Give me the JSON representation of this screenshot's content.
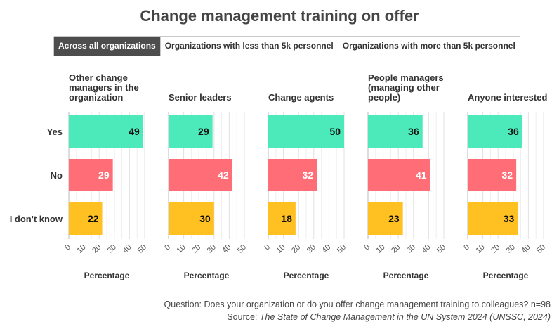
{
  "title": "Change management training on offer",
  "tabs": [
    {
      "label": "Across all organizations",
      "active": true
    },
    {
      "label": "Organizations with less than 5k personnel",
      "active": false
    },
    {
      "label": "Organizations with more than 5k personnel",
      "active": false
    }
  ],
  "footer": {
    "question": "Question: Does your organization or do you offer change management training to colleagues? n=98",
    "source_prefix": "Source: ",
    "source_italic": "The State of Change Management in the UN System 2024 (UNSSC, 2024)"
  },
  "chart_data": {
    "type": "bar",
    "orientation": "horizontal",
    "categories": [
      "Yes",
      "No",
      "I don't know"
    ],
    "colors": {
      "Yes": "#4ceabb",
      "No": "#ff6e76",
      "I don't know": "#ffc022"
    },
    "xlabel": "Percentage",
    "xlim": [
      0,
      50
    ],
    "xticks": [
      0,
      10,
      20,
      30,
      40,
      50
    ],
    "grid": true,
    "panels": [
      {
        "name": "Other change managers in the organization",
        "title_lines": [
          "Other change",
          "managers in the",
          "organization"
        ],
        "values": [
          49,
          29,
          22
        ]
      },
      {
        "name": "Senior leaders",
        "title_lines": [
          "Senior leaders"
        ],
        "values": [
          29,
          42,
          30
        ]
      },
      {
        "name": "Change agents",
        "title_lines": [
          "Change agents"
        ],
        "values": [
          50,
          32,
          18
        ]
      },
      {
        "name": "People managers (managing other people)",
        "title_lines": [
          "People managers",
          "(managing other",
          "people)"
        ],
        "values": [
          36,
          41,
          23
        ]
      },
      {
        "name": "Anyone interested",
        "title_lines": [
          "Anyone interested"
        ],
        "values": [
          36,
          32,
          33
        ]
      }
    ]
  }
}
